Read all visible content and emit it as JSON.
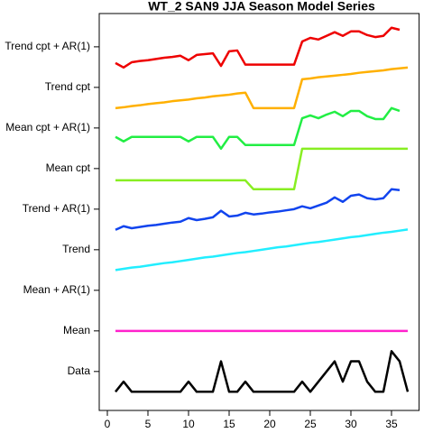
{
  "chart_data": {
    "type": "line",
    "title": "WT_2 SAN9 JJA Season Model Series",
    "x": [
      1,
      2,
      3,
      4,
      5,
      6,
      7,
      8,
      9,
      10,
      11,
      12,
      13,
      14,
      15,
      16,
      17,
      18,
      19,
      20,
      21,
      22,
      23,
      24,
      25,
      26,
      27,
      28,
      29,
      30,
      31,
      32,
      33,
      34,
      35,
      36,
      37
    ],
    "xlim": [
      -1,
      38.4
    ],
    "xticks": [
      0,
      5,
      10,
      15,
      20,
      25,
      30,
      35
    ],
    "ylim": [
      -0.96,
      8.82
    ],
    "yticks": [
      {
        "value": 0,
        "label": "Data"
      },
      {
        "value": 1,
        "label": "Mean"
      },
      {
        "value": 2,
        "label": "Mean + AR(1)"
      },
      {
        "value": 3,
        "label": "Trend"
      },
      {
        "value": 4,
        "label": "Trend + AR(1)"
      },
      {
        "value": 5,
        "label": "Mean cpt"
      },
      {
        "value": 6,
        "label": "Mean cpt + AR(1)"
      },
      {
        "value": 7,
        "label": "Trend cpt"
      },
      {
        "value": 8,
        "label": "Trend cpt + AR(1)"
      }
    ],
    "series": [
      {
        "color": "#000000",
        "values": [
          -0.5,
          -0.25,
          -0.5,
          -0.5,
          -0.5,
          -0.5,
          -0.5,
          -0.5,
          -0.5,
          -0.25,
          -0.5,
          -0.5,
          -0.5,
          0.25,
          -0.5,
          -0.5,
          -0.25,
          -0.5,
          -0.5,
          -0.5,
          -0.5,
          -0.5,
          -0.5,
          -0.25,
          -0.5,
          -0.25,
          0,
          0.25,
          -0.25,
          0.25,
          0.25,
          -0.25,
          -0.5,
          -0.5,
          0.5,
          0.25,
          -0.5
        ]
      },
      {
        "color": "#ff22cc",
        "values": [
          1,
          1,
          1,
          1,
          1,
          1,
          1,
          1,
          1,
          1,
          1,
          1,
          1,
          1,
          1,
          1,
          1,
          1,
          1,
          1,
          1,
          1,
          1,
          1,
          1,
          1,
          1,
          1,
          1,
          1,
          1,
          1,
          1,
          1,
          1,
          1,
          1
        ]
      },
      {
        "color": "#22eeff",
        "values": [
          2.5,
          2.53,
          2.56,
          2.58,
          2.61,
          2.64,
          2.67,
          2.69,
          2.72,
          2.75,
          2.78,
          2.81,
          2.83,
          2.86,
          2.89,
          2.92,
          2.94,
          2.97,
          3.0,
          3.03,
          3.06,
          3.08,
          3.11,
          3.14,
          3.17,
          3.19,
          3.22,
          3.25,
          3.28,
          3.31,
          3.33,
          3.36,
          3.39,
          3.42,
          3.44,
          3.47,
          3.5
        ]
      },
      {
        "color": "#1144ee",
        "values": [
          3.49,
          3.58,
          3.53,
          3.56,
          3.59,
          3.61,
          3.64,
          3.67,
          3.69,
          3.78,
          3.73,
          3.76,
          3.8,
          3.96,
          3.82,
          3.84,
          3.91,
          3.87,
          3.89,
          3.92,
          3.94,
          3.97,
          4.0,
          4.07,
          4.02,
          4.09,
          4.16,
          4.29,
          4.18,
          4.33,
          4.36,
          4.27,
          4.24,
          4.27,
          4.49,
          4.47,
          null
        ]
      },
      {
        "color": "#88ee22",
        "values": [
          4.71,
          4.71,
          4.71,
          4.71,
          4.71,
          4.71,
          4.71,
          4.71,
          4.71,
          4.71,
          4.71,
          4.71,
          4.71,
          4.71,
          4.71,
          4.71,
          4.71,
          4.49,
          4.49,
          4.49,
          4.49,
          4.49,
          4.49,
          5.49,
          5.49,
          5.49,
          5.49,
          5.49,
          5.49,
          5.49,
          5.49,
          5.49,
          5.49,
          5.49,
          5.49,
          5.49,
          5.49
        ]
      },
      {
        "color": "#22ee44",
        "values": [
          5.78,
          5.67,
          5.78,
          5.78,
          5.78,
          5.78,
          5.78,
          5.78,
          5.78,
          5.67,
          5.78,
          5.78,
          5.78,
          5.49,
          5.78,
          5.78,
          5.58,
          5.58,
          5.58,
          5.58,
          5.58,
          5.58,
          5.58,
          6.24,
          6.31,
          6.24,
          6.33,
          6.4,
          6.29,
          6.42,
          6.42,
          6.29,
          6.22,
          6.22,
          6.49,
          6.42,
          null
        ]
      },
      {
        "color": "#ffb000",
        "values": [
          6.49,
          6.51,
          6.54,
          6.56,
          6.59,
          6.61,
          6.63,
          6.66,
          6.68,
          6.7,
          6.73,
          6.75,
          6.78,
          6.8,
          6.82,
          6.85,
          6.87,
          6.49,
          6.49,
          6.49,
          6.49,
          6.49,
          6.49,
          7.2,
          7.22,
          7.25,
          7.27,
          7.29,
          7.31,
          7.33,
          7.36,
          7.38,
          7.4,
          7.42,
          7.45,
          7.47,
          7.49
        ]
      },
      {
        "color": "#ee0000",
        "values": [
          7.6,
          7.49,
          7.62,
          7.65,
          7.67,
          7.7,
          7.73,
          7.75,
          7.78,
          7.67,
          7.8,
          7.82,
          7.84,
          7.53,
          7.89,
          7.91,
          7.56,
          7.56,
          7.56,
          7.56,
          7.56,
          7.56,
          7.56,
          8.13,
          8.22,
          8.18,
          8.27,
          8.36,
          8.27,
          8.38,
          8.38,
          8.29,
          8.24,
          8.27,
          8.47,
          8.42,
          null
        ]
      }
    ]
  }
}
